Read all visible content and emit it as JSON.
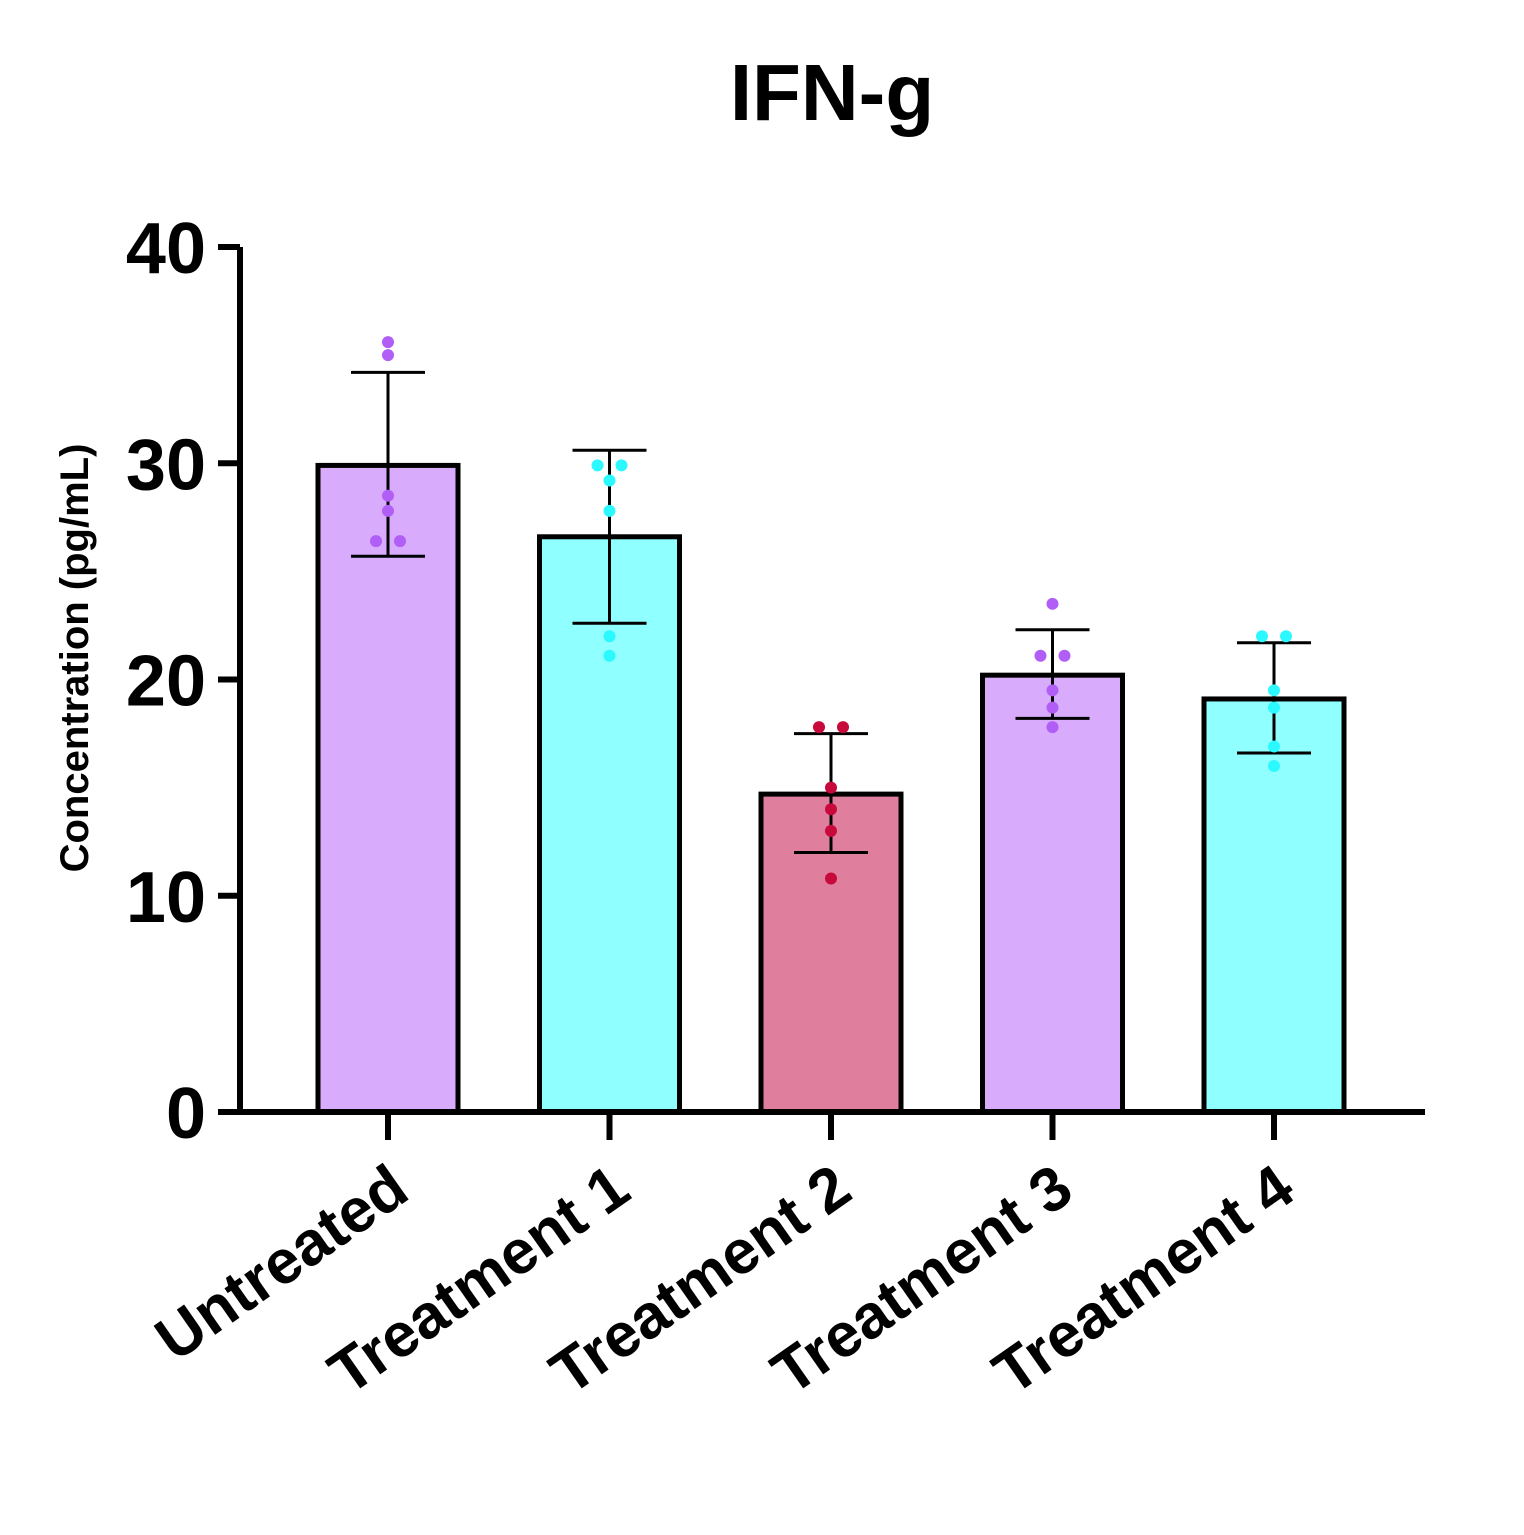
{
  "chart_data": {
    "type": "bar",
    "title": "IFN-g",
    "xlabel": "",
    "ylabel": "Concentration (pg/mL)",
    "ylim": [
      0,
      40
    ],
    "yticks": [
      {
        "value": 0,
        "label": "0"
      },
      {
        "value": 10,
        "label": "10"
      },
      {
        "value": 20,
        "label": "20"
      },
      {
        "value": 30,
        "label": "30"
      },
      {
        "value": 40,
        "label": "40"
      }
    ],
    "categories": [
      "Untreated",
      "Treatment 1",
      "Treatment 2",
      "Treatment 3",
      "Treatment 4"
    ],
    "values": [
      29.9,
      26.6,
      14.7,
      20.2,
      19.1
    ],
    "error_low": [
      25.7,
      22.6,
      12.0,
      18.2,
      16.6
    ],
    "error_high": [
      34.2,
      30.6,
      17.5,
      22.3,
      21.7
    ],
    "bar_colors": [
      "#d8abfc",
      "#8fffff",
      "#df7f9d",
      "#d8abfc",
      "#8fffff"
    ],
    "point_colors": [
      "#b15ef6",
      "#2bf9ff",
      "#c70a3b",
      "#b15ef6",
      "#2bf9ff"
    ],
    "points": [
      [
        35.6,
        35.0,
        28.5,
        27.8,
        26.4,
        26.4
      ],
      [
        29.9,
        29.9,
        29.2,
        27.8,
        22.0,
        21.1
      ],
      [
        17.8,
        17.8,
        15.0,
        14.0,
        13.0,
        10.8
      ],
      [
        23.5,
        21.1,
        21.1,
        19.5,
        18.7,
        17.8
      ],
      [
        22.0,
        22.0,
        19.5,
        18.7,
        16.9,
        16.0
      ]
    ],
    "grid": false,
    "legend": "none"
  }
}
